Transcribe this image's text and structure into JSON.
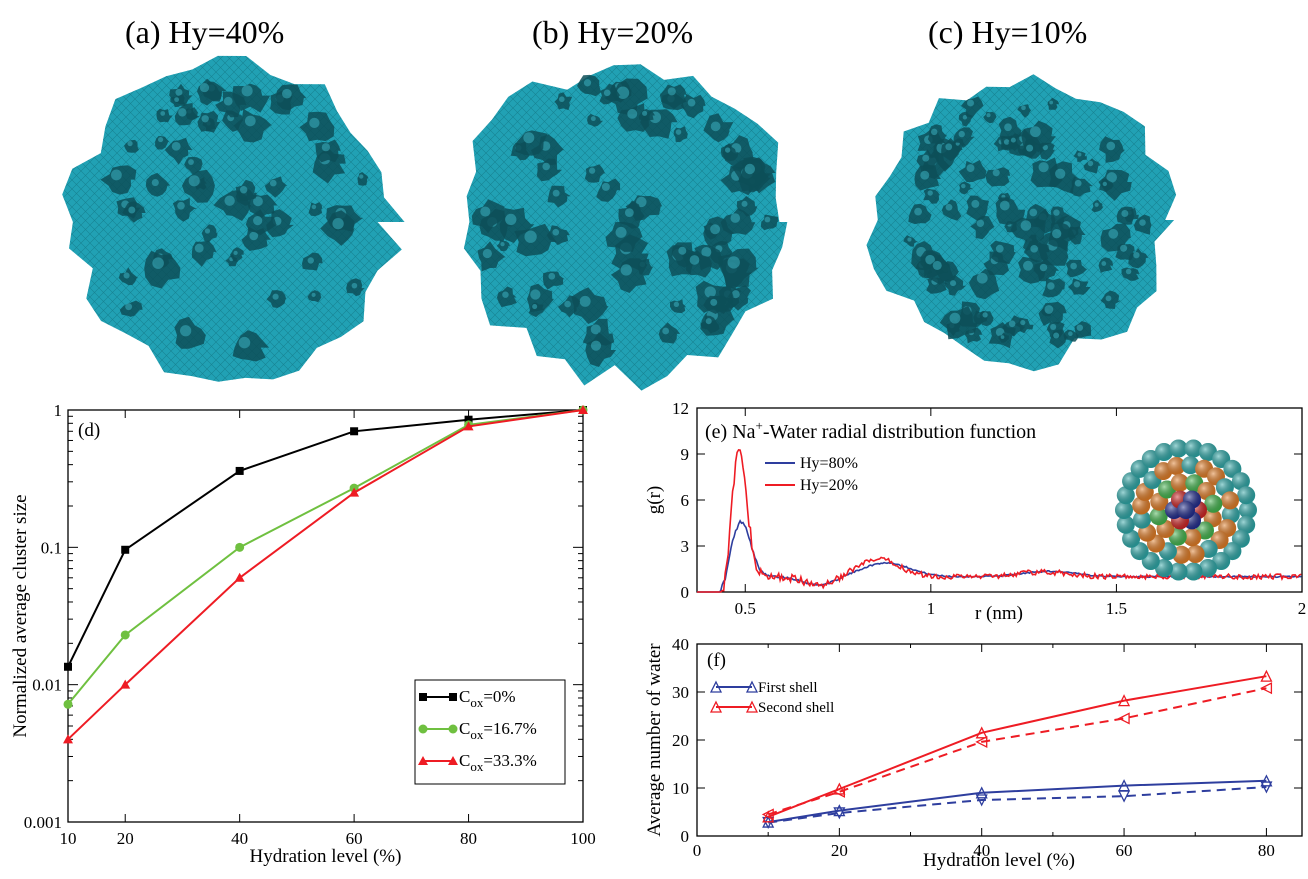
{
  "panels_top": [
    {
      "label": "(a) Hy=40%"
    },
    {
      "label": "(b) Hy=20%"
    },
    {
      "label": "(c) Hy=10%"
    }
  ],
  "colors": {
    "membrane": "#21a1b4",
    "membrane_dark": "#0d4f58",
    "black": "#000000",
    "green": "#6fc040",
    "red": "#ee1c24",
    "blue": "#2e3e9e",
    "orange": "#e07a22",
    "teal_atom": "#2aa6a6",
    "dark_blue_atom": "#1f2a8c",
    "green_atom": "#3fb34a"
  },
  "chart_data": [
    {
      "id": "d",
      "type": "line",
      "panel_label": "(d)",
      "xlabel": "Hydration level (%)",
      "ylabel": "Normalized average cluster size",
      "yscale": "log",
      "xlim": [
        10,
        100
      ],
      "ylim": [
        0.001,
        1
      ],
      "xticks": [
        10,
        20,
        40,
        60,
        80,
        100
      ],
      "yticks": [
        {
          "v": 0.001,
          "label": "0.001"
        },
        {
          "v": 0.01,
          "label": "0.01"
        },
        {
          "v": 0.1,
          "label": "0.1"
        },
        {
          "v": 1,
          "label": "1"
        }
      ],
      "x": [
        10,
        20,
        40,
        60,
        80,
        100
      ],
      "series": [
        {
          "name": "C",
          "sub": "ox",
          "rest": "=0%",
          "color": "#000000",
          "marker": "square",
          "values": [
            0.0135,
            0.096,
            0.36,
            0.7,
            0.85,
            1.0
          ]
        },
        {
          "name": "C",
          "sub": "ox",
          "rest": "=16.7%",
          "color": "#6fc040",
          "marker": "circle",
          "values": [
            0.0072,
            0.023,
            0.1,
            0.27,
            0.78,
            1.0
          ]
        },
        {
          "name": "C",
          "sub": "ox",
          "rest": "=33.3%",
          "color": "#ee1c24",
          "marker": "triangle",
          "values": [
            0.004,
            0.01,
            0.06,
            0.25,
            0.76,
            1.0
          ]
        }
      ],
      "legend_position": "bottom-right"
    },
    {
      "id": "e",
      "type": "line",
      "panel_label": "(e)",
      "title_pre": "Na",
      "title_sup": "+",
      "title_post": "-Water radial distribution function",
      "xlabel": "r (nm)",
      "ylabel": "g(r)",
      "xlim": [
        0.37,
        2.0
      ],
      "ylim": [
        0,
        12
      ],
      "xticks": [
        {
          "v": 0.5,
          "label": "0.5"
        },
        {
          "v": 1,
          "label": "1"
        },
        {
          "v": 1.5,
          "label": "1.5"
        },
        {
          "v": 2,
          "label": "2"
        }
      ],
      "yticks": [
        0,
        3,
        6,
        9,
        12
      ],
      "series": [
        {
          "name": "Hy=80%",
          "color": "#2e3e9e",
          "peaks": [
            {
              "x": 0.49,
              "h": 3.6,
              "w": 0.035
            },
            {
              "x": 0.88,
              "h": 0.9,
              "w": 0.09
            },
            {
              "x": 1.32,
              "h": 0.35,
              "w": 0.1
            }
          ],
          "noise": 0.08
        },
        {
          "name": "Hy=20%",
          "color": "#ee1c24",
          "peaks": [
            {
              "x": 0.485,
              "h": 8.2,
              "w": 0.028
            },
            {
              "x": 0.86,
              "h": 1.1,
              "w": 0.08
            },
            {
              "x": 1.3,
              "h": 0.3,
              "w": 0.1
            }
          ],
          "noise": 0.35
        }
      ],
      "legend_position": "top-left"
    },
    {
      "id": "f",
      "type": "line",
      "panel_label": "(f)",
      "xlabel": "Hydration level (%)",
      "ylabel": "Average number of water",
      "xlim": [
        0,
        85
      ],
      "ylim": [
        0,
        40
      ],
      "xticks": [
        0,
        20,
        40,
        60,
        80
      ],
      "yticks": [
        0,
        10,
        20,
        30,
        40
      ],
      "x": [
        10,
        20,
        40,
        60,
        80
      ],
      "series": [
        {
          "name": "First shell",
          "color": "#2e3e9e",
          "style": "solid",
          "marker": "triangle-up",
          "values": [
            2.9,
            5.3,
            9.0,
            10.5,
            11.5
          ]
        },
        {
          "name": "",
          "color": "#2e3e9e",
          "style": "dashed",
          "marker": "triangle-down",
          "values": [
            2.8,
            4.8,
            7.5,
            8.3,
            10.2
          ]
        },
        {
          "name": "Second shell",
          "color": "#ee1c24",
          "style": "solid",
          "marker": "triangle-up",
          "values": [
            4.0,
            9.8,
            21.5,
            28.2,
            33.3
          ]
        },
        {
          "name": "",
          "color": "#ee1c24",
          "style": "dashed",
          "marker": "triangle-left",
          "values": [
            4.5,
            9.2,
            19.6,
            24.5,
            30.8
          ]
        }
      ],
      "legend_position": "top-left"
    }
  ]
}
